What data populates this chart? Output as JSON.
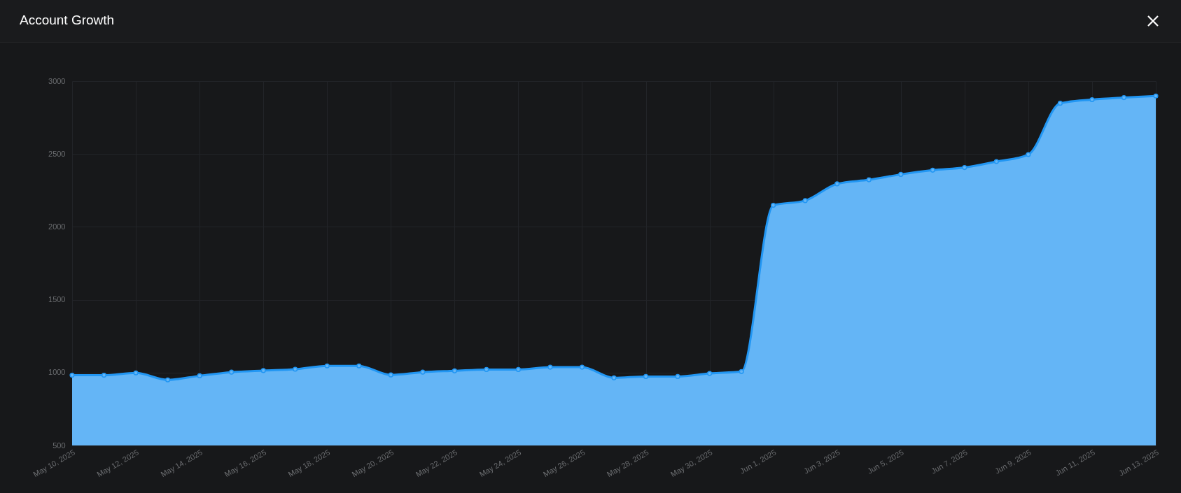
{
  "chart_data": {
    "type": "area",
    "title": "Account Growth",
    "x": [
      "2025-05-10",
      "2025-05-11",
      "2025-05-12",
      "2025-05-13",
      "2025-05-14",
      "2025-05-15",
      "2025-05-16",
      "2025-05-17",
      "2025-05-18",
      "2025-05-19",
      "2025-05-20",
      "2025-05-21",
      "2025-05-22",
      "2025-05-23",
      "2025-05-24",
      "2025-05-25",
      "2025-05-26",
      "2025-05-27",
      "2025-05-28",
      "2025-05-29",
      "2025-05-30",
      "2025-05-31",
      "2025-06-01",
      "2025-06-02",
      "2025-06-03",
      "2025-06-04",
      "2025-06-05",
      "2025-06-06",
      "2025-06-07",
      "2025-06-08",
      "2025-06-09",
      "2025-06-10",
      "2025-06-11",
      "2025-06-12",
      "2025-06-13"
    ],
    "series": [
      {
        "color": "#64b5f6",
        "values": [
          982,
          982,
          998,
          950,
          978,
          1003,
          1014,
          1023,
          1046,
          1046,
          984,
          1003,
          1012,
          1021,
          1021,
          1037,
          1037,
          964,
          973,
          973,
          994,
          1007,
          2148,
          2180,
          2295,
          2323,
          2360,
          2389,
          2407,
          2448,
          2496,
          2848,
          2873,
          2887,
          2898
        ]
      }
    ],
    "xlim": [
      "2025-05-10",
      "2025-06-13"
    ],
    "xticks": [
      {
        "value": "2025-05-10",
        "label": "May 10, 2025"
      },
      {
        "value": "2025-05-12",
        "label": "May 12, 2025"
      },
      {
        "value": "2025-05-14",
        "label": "May 14, 2025"
      },
      {
        "value": "2025-05-16",
        "label": "May 16, 2025"
      },
      {
        "value": "2025-05-18",
        "label": "May 18, 2025"
      },
      {
        "value": "2025-05-20",
        "label": "May 20, 2025"
      },
      {
        "value": "2025-05-22",
        "label": "May 22, 2025"
      },
      {
        "value": "2025-05-24",
        "label": "May 24, 2025"
      },
      {
        "value": "2025-05-26",
        "label": "May 26, 2025"
      },
      {
        "value": "2025-05-28",
        "label": "May 28, 2025"
      },
      {
        "value": "2025-05-30",
        "label": "May 30, 2025"
      },
      {
        "value": "2025-06-01",
        "label": "Jun 1, 2025"
      },
      {
        "value": "2025-06-03",
        "label": "Jun 3, 2025"
      },
      {
        "value": "2025-06-05",
        "label": "Jun 5, 2025"
      },
      {
        "value": "2025-06-07",
        "label": "Jun 7, 2025"
      },
      {
        "value": "2025-06-09",
        "label": "Jun 9, 2025"
      },
      {
        "value": "2025-06-11",
        "label": "Jun 11, 2025"
      },
      {
        "value": "2025-06-13",
        "label": "Jun 13, 2025"
      }
    ],
    "ylim": [
      500,
      3000
    ],
    "yticks": [
      500,
      1000,
      1500,
      2000,
      2500,
      3000
    ],
    "grid": true,
    "marker": "circle",
    "line_style": "solid"
  }
}
